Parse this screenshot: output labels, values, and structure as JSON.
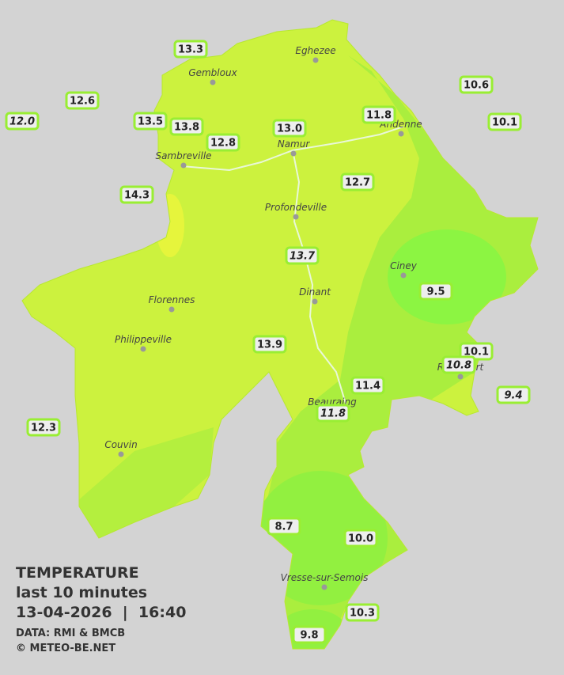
{
  "legend": {
    "title": "TEMPERATURE",
    "subtitle": "last 10 minutes",
    "datetime": "13-04-2026  |  16:40",
    "source": "DATA: RMI & BMCB",
    "credit": "© METEO-BE.NET"
  },
  "cities": [
    "Eghezee",
    "Gembloux",
    "Andenne",
    "Namur",
    "Sambreville",
    "Profondeville",
    "Ciney",
    "Dinant",
    "Florennes",
    "Philippeville",
    "Rochefort",
    "Beauraing",
    "Couvin",
    "Vresse-sur-Semois"
  ],
  "stations": [
    "13.3",
    "12.6",
    "12.0",
    "13.5",
    "13.8",
    "12.8",
    "13.0",
    "11.8",
    "10.6",
    "10.1",
    "14.3",
    "12.7",
    "13.7",
    "9.5",
    "13.9",
    "10.1",
    "10.8",
    "9.4",
    "11.4",
    "11.8",
    "12.3",
    "8.7",
    "10.0",
    "10.3",
    "9.8"
  ]
}
